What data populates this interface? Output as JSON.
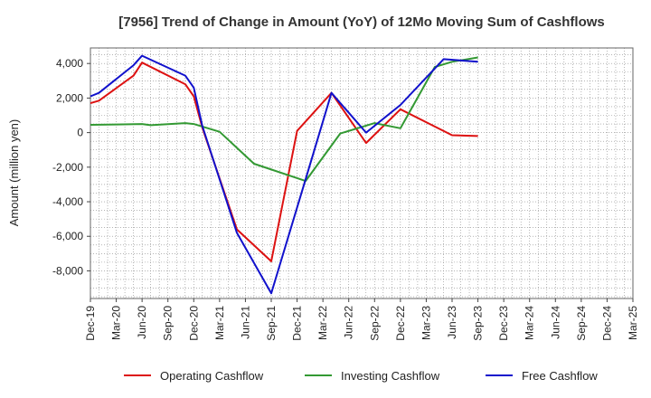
{
  "chart_data": {
    "type": "line",
    "title": "[7956]  Trend of Change in Amount (YoY) of 12Mo Moving Sum of Cashflows",
    "xlabel": "",
    "ylabel": "Amount (million yen)",
    "ylim": [
      -9600,
      4900
    ],
    "yticks": [
      4000,
      2000,
      0,
      -2000,
      -4000,
      -6000,
      -8000
    ],
    "ytick_labels": [
      "4,000",
      "2,000",
      "0",
      "-2,000",
      "-4,000",
      "-6,000",
      "-8,000"
    ],
    "categories": [
      "Dec-19",
      "Mar-20",
      "Jun-20",
      "Sep-20",
      "Dec-20",
      "Mar-21",
      "Jun-21",
      "Sep-21",
      "Dec-21",
      "Mar-22",
      "Jun-22",
      "Sep-22",
      "Dec-22",
      "Mar-23",
      "Jun-23",
      "Sep-23",
      "Dec-23",
      "Mar-24",
      "Jun-24",
      "Sep-24",
      "Dec-24",
      "Mar-25"
    ],
    "grid": true,
    "legend_position": "bottom",
    "series": [
      {
        "name": "Operating Cashflow",
        "color": "#dd1111",
        "points": [
          [
            0,
            1700
          ],
          [
            0.33,
            1850
          ],
          [
            1.67,
            3300
          ],
          [
            2,
            4050
          ],
          [
            3.67,
            2800
          ],
          [
            4,
            2100
          ],
          [
            4.33,
            300
          ],
          [
            5.67,
            -5600
          ],
          [
            7,
            -7450
          ],
          [
            8,
            100
          ],
          [
            9.33,
            2300
          ],
          [
            10.67,
            -600
          ],
          [
            12,
            1350
          ],
          [
            14,
            -150
          ],
          [
            15,
            -200
          ]
        ]
      },
      {
        "name": "Investing Cashflow",
        "color": "#339933",
        "points": [
          [
            0,
            450
          ],
          [
            1,
            470
          ],
          [
            2,
            500
          ],
          [
            2.33,
            430
          ],
          [
            3.67,
            550
          ],
          [
            4,
            500
          ],
          [
            5,
            50
          ],
          [
            6.33,
            -1800
          ],
          [
            8.33,
            -2800
          ],
          [
            9.67,
            -50
          ],
          [
            11,
            550
          ],
          [
            12,
            250
          ],
          [
            13.33,
            3800
          ],
          [
            14,
            4100
          ],
          [
            15,
            4350
          ]
        ]
      },
      {
        "name": "Free Cashflow",
        "color": "#1111cc",
        "points": [
          [
            0,
            2100
          ],
          [
            0.33,
            2300
          ],
          [
            1.67,
            3900
          ],
          [
            2,
            4450
          ],
          [
            3.67,
            3300
          ],
          [
            4,
            2600
          ],
          [
            4.33,
            400
          ],
          [
            5.67,
            -5800
          ],
          [
            7,
            -9300
          ],
          [
            8.33,
            -2700
          ],
          [
            9.33,
            2300
          ],
          [
            10.67,
            0
          ],
          [
            12,
            1600
          ],
          [
            13.67,
            4250
          ],
          [
            15,
            4100
          ]
        ]
      }
    ]
  }
}
